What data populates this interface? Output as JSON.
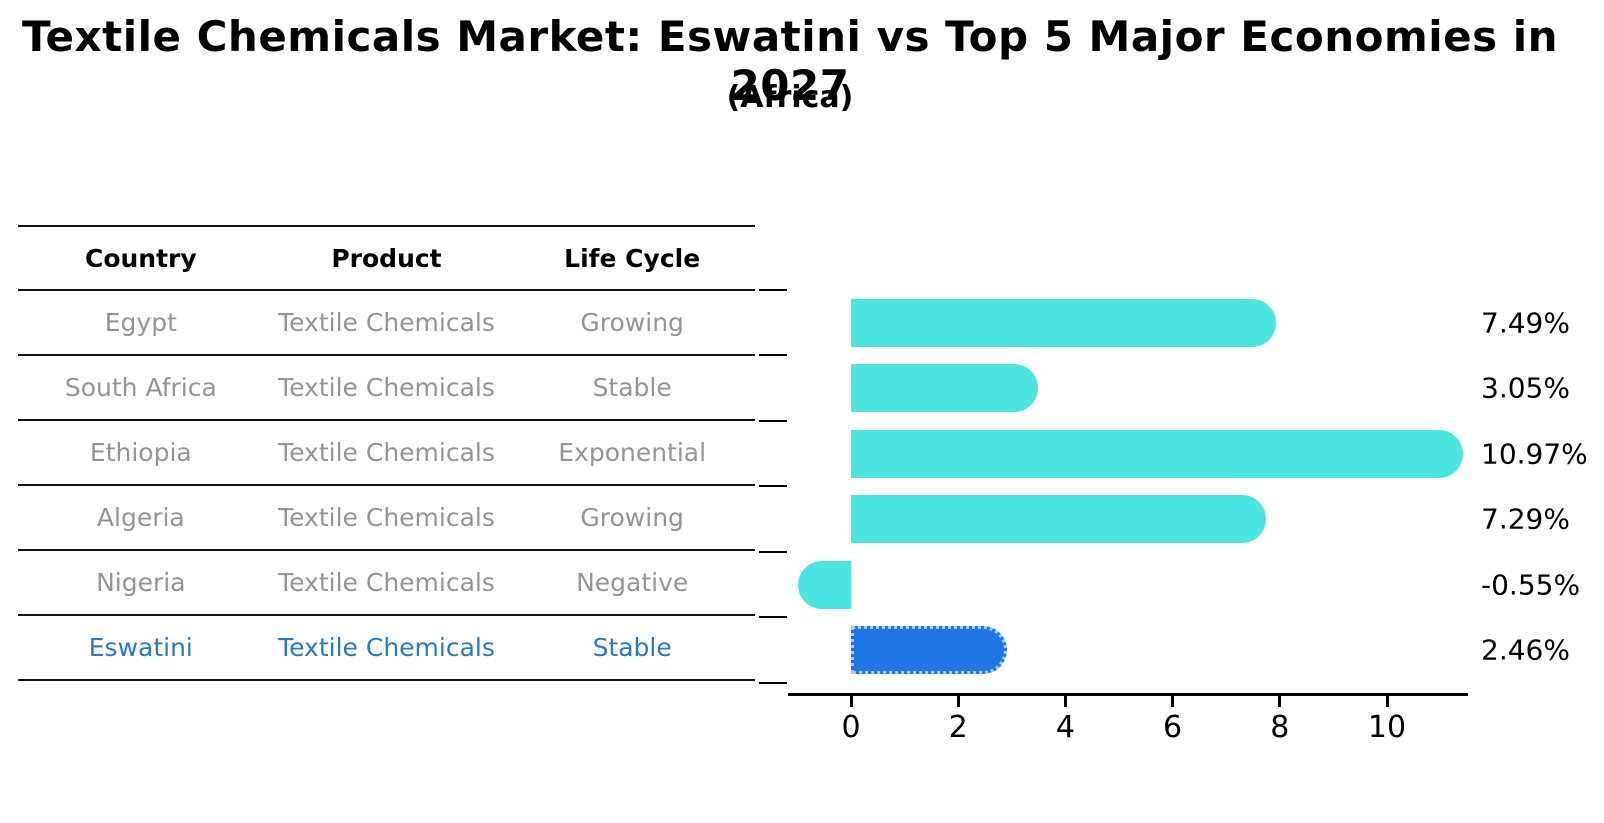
{
  "title": "Textile Chemicals Market: Eswatini vs Top 5 Major Economies in 2027",
  "subtitle": "(Africa)",
  "table": {
    "headers": [
      "Country",
      "Product",
      "Life Cycle"
    ],
    "rows": [
      {
        "country": "Egypt",
        "product": "Textile Chemicals",
        "life_cycle": "Growing",
        "highlight": false
      },
      {
        "country": "South Africa",
        "product": "Textile Chemicals",
        "life_cycle": "Stable",
        "highlight": false
      },
      {
        "country": "Ethiopia",
        "product": "Textile Chemicals",
        "life_cycle": "Exponential",
        "highlight": false
      },
      {
        "country": "Algeria",
        "product": "Textile Chemicals",
        "life_cycle": "Growing",
        "highlight": false
      },
      {
        "country": "Nigeria",
        "product": "Textile Chemicals",
        "life_cycle": "Negative",
        "highlight": false
      },
      {
        "country": "Eswatini",
        "product": "Textile Chemicals",
        "life_cycle": "Stable",
        "highlight": true
      }
    ]
  },
  "chart_data": {
    "type": "bar",
    "orientation": "horizontal",
    "categories": [
      "Egypt",
      "South Africa",
      "Ethiopia",
      "Algeria",
      "Nigeria",
      "Eswatini"
    ],
    "values": [
      7.49,
      3.05,
      10.97,
      7.29,
      -0.55,
      2.46
    ],
    "value_labels": [
      "7.49%",
      "3.05%",
      "10.97%",
      "7.29%",
      "-0.55%",
      "2.46%"
    ],
    "x_ticks": [
      0,
      2,
      4,
      6,
      8,
      10
    ],
    "xlim": [
      -1.2,
      11.5
    ],
    "grid": false,
    "legend": "none",
    "bar_color": "#4AE5DE",
    "highlight_bar_color": "#2176E3",
    "highlight_index": 5,
    "title": "Textile Chemicals Market: Eswatini vs Top 5 Major Economies in 2027",
    "xlabel": "",
    "ylabel": ""
  },
  "colors": {
    "bar_cyan": "#4AE5DE",
    "bar_blue": "#2176E3",
    "highlight_text": "#2878C8",
    "row_text": "#949494",
    "header_text": "#000000",
    "axis": "#000000"
  }
}
